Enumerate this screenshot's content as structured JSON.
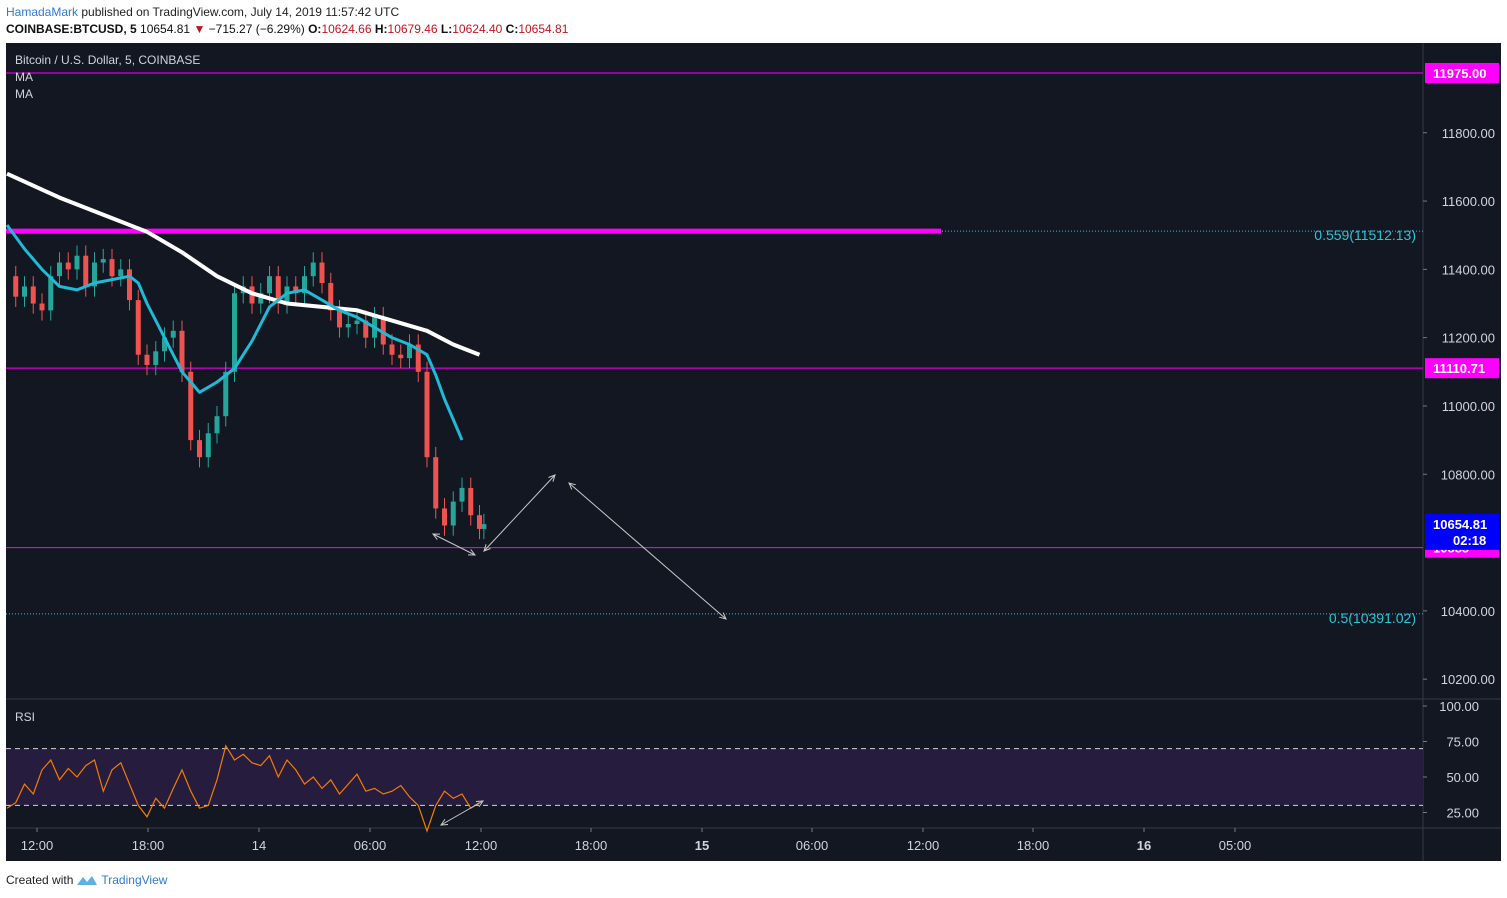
{
  "header": {
    "author": "HamadaMark",
    "published_text": "published on TradingView.com, July 14, 2019 11:57:42 UTC",
    "symbol": "COINBASE:BTCUSD, 5",
    "last": "10654.81",
    "change": "−715.27 (−6.29%)",
    "open_label": "O:",
    "open": "10624.66",
    "high_label": "H:",
    "high": "10679.46",
    "low_label": "L:",
    "low": "10624.40",
    "close_label": "C:",
    "close": "10654.81"
  },
  "legend": {
    "title": "Bitcoin / U.S. Dollar, 5, COINBASE",
    "ma1": "MA",
    "ma2": "MA",
    "rsi": "RSI"
  },
  "footer": {
    "created_with": "Created with",
    "brand": "TradingView"
  },
  "colors": {
    "background": "#131722",
    "ma_slow": "#ffffff",
    "ma_fast": "#1fbad6",
    "level": "#ff00ff",
    "fib": "#26c6da",
    "rsi": "#f57c00",
    "up": "#26a69a",
    "down": "#ef5350",
    "price_tag": "#0000ff"
  },
  "chart_data": {
    "type": "line",
    "price_axis": {
      "ticks": [
        "11800.00",
        "11600.00",
        "11400.00",
        "11200.00",
        "11000.00",
        "10800.00",
        "10400.00",
        "10200.00"
      ],
      "ylim": [
        10150,
        12030
      ]
    },
    "time_axis": {
      "labels": [
        "12:00",
        "18:00",
        "14",
        "06:00",
        "12:00",
        "18:00",
        "15",
        "06:00",
        "12:00",
        "18:00",
        "16",
        "05:00"
      ]
    },
    "horizontal_levels": [
      {
        "value": 11975.0,
        "label": "11975.00"
      },
      {
        "value": 11110.71,
        "label": "11110.71"
      },
      {
        "value": 10585,
        "label": "10585"
      }
    ],
    "fib_levels": [
      {
        "value": 11512.13,
        "label": "0.559(11512.13)"
      },
      {
        "value": 10391.02,
        "label": "0.5(10391.02)"
      }
    ],
    "current_price": {
      "value": 10654.81,
      "label": "10654.81",
      "countdown": "02:18"
    },
    "price_series": [
      [
        0,
        11380
      ],
      [
        0.5,
        11320
      ],
      [
        1,
        11350
      ],
      [
        1.5,
        11300
      ],
      [
        2,
        11280
      ],
      [
        2.5,
        11380
      ],
      [
        3,
        11420
      ],
      [
        3.5,
        11400
      ],
      [
        4,
        11440
      ],
      [
        4.5,
        11350
      ],
      [
        5,
        11420
      ],
      [
        5.5,
        11430
      ],
      [
        6,
        11380
      ],
      [
        6.5,
        11400
      ],
      [
        7,
        11310
      ],
      [
        7.5,
        11150
      ],
      [
        8,
        11120
      ],
      [
        8.5,
        11160
      ],
      [
        9,
        11200
      ],
      [
        9.5,
        11220
      ],
      [
        10,
        11100
      ],
      [
        10.5,
        10900
      ],
      [
        11,
        10850
      ],
      [
        11.5,
        10920
      ],
      [
        12,
        10970
      ],
      [
        12.5,
        11100
      ],
      [
        13,
        11330
      ],
      [
        13.5,
        11350
      ],
      [
        14,
        11300
      ],
      [
        14.5,
        11330
      ],
      [
        15,
        11380
      ],
      [
        15.5,
        11300
      ],
      [
        16,
        11350
      ],
      [
        16.5,
        11330
      ],
      [
        17,
        11380
      ],
      [
        17.5,
        11420
      ],
      [
        18,
        11360
      ],
      [
        18.5,
        11280
      ],
      [
        19,
        11230
      ],
      [
        19.5,
        11240
      ],
      [
        20,
        11250
      ],
      [
        20.5,
        11200
      ],
      [
        21,
        11260
      ],
      [
        21.5,
        11180
      ],
      [
        22,
        11150
      ],
      [
        22.5,
        11140
      ],
      [
        23,
        11180
      ],
      [
        23.5,
        11100
      ],
      [
        24,
        10850
      ],
      [
        24.5,
        10700
      ],
      [
        25,
        10650
      ],
      [
        25.5,
        10720
      ],
      [
        26,
        10760
      ],
      [
        26.5,
        10680
      ],
      [
        27,
        10640
      ],
      [
        27.25,
        10654
      ]
    ],
    "ma_slow": [
      [
        0,
        11680
      ],
      [
        3,
        11610
      ],
      [
        6,
        11550
      ],
      [
        8,
        11510
      ],
      [
        10,
        11450
      ],
      [
        12,
        11380
      ],
      [
        14,
        11330
      ],
      [
        16,
        11300
      ],
      [
        18,
        11290
      ],
      [
        20,
        11280
      ],
      [
        22,
        11250
      ],
      [
        24,
        11220
      ],
      [
        25.5,
        11180
      ],
      [
        27,
        11150
      ]
    ],
    "ma_fast": [
      [
        0,
        11530
      ],
      [
        1,
        11460
      ],
      [
        2,
        11400
      ],
      [
        3,
        11350
      ],
      [
        4,
        11340
      ],
      [
        5,
        11360
      ],
      [
        6,
        11370
      ],
      [
        7,
        11380
      ],
      [
        7.5,
        11360
      ],
      [
        8,
        11300
      ],
      [
        9,
        11200
      ],
      [
        10,
        11100
      ],
      [
        11,
        11040
      ],
      [
        12,
        11070
      ],
      [
        13,
        11110
      ],
      [
        14,
        11190
      ],
      [
        15,
        11290
      ],
      [
        16,
        11330
      ],
      [
        17,
        11340
      ],
      [
        18,
        11310
      ],
      [
        19,
        11280
      ],
      [
        20,
        11260
      ],
      [
        21,
        11230
      ],
      [
        22,
        11200
      ],
      [
        23,
        11180
      ],
      [
        24,
        11150
      ],
      [
        24.5,
        11090
      ],
      [
        25,
        11020
      ],
      [
        25.5,
        10960
      ],
      [
        26,
        10900
      ]
    ],
    "rsi": {
      "ticks": [
        "100.00",
        "75.00",
        "50.00",
        "25.00"
      ],
      "overbought": 70,
      "oversold": 30,
      "ylim": [
        15,
        105
      ],
      "values": [
        [
          0,
          28
        ],
        [
          0.5,
          32
        ],
        [
          1,
          45
        ],
        [
          1.5,
          38
        ],
        [
          2,
          55
        ],
        [
          2.5,
          62
        ],
        [
          3,
          48
        ],
        [
          3.5,
          56
        ],
        [
          4,
          50
        ],
        [
          4.5,
          58
        ],
        [
          5,
          62
        ],
        [
          5.5,
          40
        ],
        [
          6,
          55
        ],
        [
          6.5,
          60
        ],
        [
          7,
          45
        ],
        [
          7.5,
          30
        ],
        [
          8,
          22
        ],
        [
          8.5,
          35
        ],
        [
          9,
          28
        ],
        [
          9.5,
          42
        ],
        [
          10,
          55
        ],
        [
          10.5,
          40
        ],
        [
          11,
          28
        ],
        [
          11.5,
          30
        ],
        [
          12,
          48
        ],
        [
          12.5,
          72
        ],
        [
          13,
          62
        ],
        [
          13.5,
          66
        ],
        [
          14,
          60
        ],
        [
          14.5,
          58
        ],
        [
          15,
          65
        ],
        [
          15.5,
          50
        ],
        [
          16,
          62
        ],
        [
          16.5,
          55
        ],
        [
          17,
          45
        ],
        [
          17.5,
          50
        ],
        [
          18,
          42
        ],
        [
          18.5,
          48
        ],
        [
          19,
          38
        ],
        [
          19.5,
          45
        ],
        [
          20,
          52
        ],
        [
          20.5,
          40
        ],
        [
          21,
          42
        ],
        [
          21.5,
          38
        ],
        [
          22,
          40
        ],
        [
          22.5,
          44
        ],
        [
          23,
          36
        ],
        [
          23.5,
          30
        ],
        [
          24,
          12
        ],
        [
          24.5,
          30
        ],
        [
          25,
          40
        ],
        [
          25.5,
          35
        ],
        [
          26,
          38
        ],
        [
          26.5,
          28
        ],
        [
          27,
          32
        ]
      ]
    }
  }
}
